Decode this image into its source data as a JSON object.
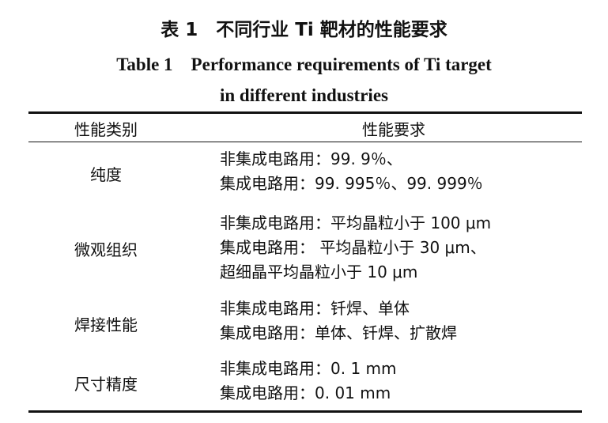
{
  "caption": {
    "zh": "表 1　不同行业 Ti 靶材的性能要求",
    "en_line1": "Table 1　Performance requirements of Ti target",
    "en_line2": "in different industries"
  },
  "table": {
    "headers": [
      "性能类别",
      "性能要求"
    ],
    "rows": [
      {
        "category": "纯度",
        "requirements": [
          "非集成电路用：99. 9％、",
          "集成电路用：99. 995％、99. 999％"
        ]
      },
      {
        "category": "微观组织",
        "requirements": [
          "非集成电路用：平均晶粒小于 100 μm",
          "集成电路用： 平均晶粒小于 30 μm、",
          "超细晶平均晶粒小于 10 μm"
        ]
      },
      {
        "category": "焊接性能",
        "requirements": [
          "非集成电路用：钎焊、单体",
          "集成电路用：单体、钎焊、扩散焊"
        ]
      },
      {
        "category": "尺寸精度",
        "requirements": [
          "非集成电路用：0. 1 mm",
          "集成电路用：0. 01 mm"
        ]
      }
    ]
  }
}
